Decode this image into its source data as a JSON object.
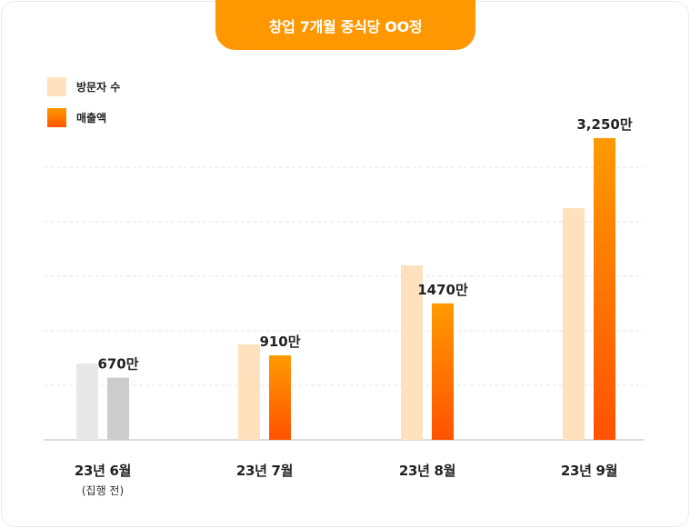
{
  "title": "창업 7개월 중식당 OO정",
  "legend": [
    {
      "label": "방문자 수",
      "color": "#ffe2bd"
    },
    {
      "label": "매출액",
      "color": "#ff7a00"
    }
  ],
  "chart_data": {
    "type": "bar",
    "title": "창업 7개월 중식당 OO정",
    "categories": [
      "23년 6월",
      "23년 7월",
      "23년 8월",
      "23년 9월"
    ],
    "category_notes": [
      "(집행 전)",
      "",
      "",
      ""
    ],
    "series": [
      {
        "name": "방문자 수",
        "values": [
          1.4,
          1.75,
          3.2,
          4.25
        ],
        "colors": [
          "#e8e8e8",
          "#ffe2bd",
          "#ffe2bd",
          "#ffe2bd"
        ]
      },
      {
        "name": "매출액",
        "values": [
          670,
          910,
          1470,
          3250
        ],
        "labels": [
          "670만",
          "910만",
          "1470만",
          "3,250만"
        ],
        "colors": [
          "#cccccc",
          "orange-gradient",
          "orange-gradient",
          "orange-gradient"
        ]
      }
    ],
    "grid": true,
    "legend_position": "top-left",
    "visitor_scale_note": "visitor bar heights relative, unlabeled"
  }
}
